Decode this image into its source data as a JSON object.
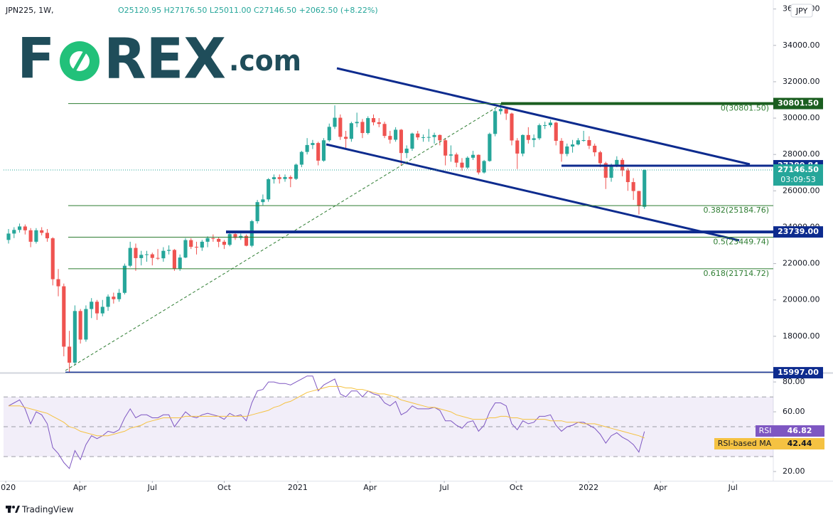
{
  "header": {
    "symbol": "JPN225, 1W,",
    "ohlc": "O25120.95 H27176.50 L25011.00 C27146.50 +2062.50 (+8.22%)",
    "currency": "JPY"
  },
  "logo": {
    "parts": [
      "F",
      "REX",
      ".com"
    ]
  },
  "footer": {
    "brand": "TradingView"
  },
  "chart_data": [
    {
      "type": "candlestick",
      "up_color": "#26a69a",
      "down_color": "#ef5350",
      "xlim": [
        -0.9,
        138.3
      ],
      "xticks": [
        {
          "value": -0.5,
          "label": "2020"
        },
        {
          "value": 12.9,
          "label": "Apr"
        },
        {
          "value": 26,
          "label": "Jul"
        },
        {
          "value": 39,
          "label": "Oct"
        },
        {
          "value": 52.3,
          "label": "2021"
        },
        {
          "value": 65.4,
          "label": "Apr"
        },
        {
          "value": 78.8,
          "label": "Jul"
        },
        {
          "value": 91.8,
          "label": "Oct"
        },
        {
          "value": 104.9,
          "label": "2022"
        },
        {
          "value": 117.9,
          "label": "Apr"
        },
        {
          "value": 131,
          "label": "Jul"
        }
      ],
      "ylim": [
        16000,
        36300
      ],
      "yticks": [
        {
          "value": 36000,
          "label": "36000.00"
        },
        {
          "value": 34000,
          "label": "34000.00"
        },
        {
          "value": 32000,
          "label": "32000.00"
        },
        {
          "value": 30000,
          "label": "30000.00"
        },
        {
          "value": 28000,
          "label": "28000.00"
        },
        {
          "value": 26000,
          "label": "26000.00"
        },
        {
          "value": 24000,
          "label": "24000.00"
        },
        {
          "value": 22000,
          "label": "22000.00"
        },
        {
          "value": 20000,
          "label": "20000.00"
        },
        {
          "value": 18000,
          "label": "18000.00"
        }
      ],
      "grid": false,
      "candles": [
        [
          23300,
          23900,
          23100,
          23650
        ],
        [
          23650,
          24000,
          23400,
          23850
        ],
        [
          23850,
          24200,
          23700,
          24040
        ],
        [
          24040,
          24150,
          23600,
          23830
        ],
        [
          23830,
          23950,
          22900,
          23200
        ],
        [
          23200,
          23950,
          23100,
          23830
        ],
        [
          23830,
          24000,
          23550,
          23690
        ],
        [
          23690,
          23900,
          23200,
          23390
        ],
        [
          23390,
          23450,
          20800,
          21140
        ],
        [
          21140,
          21700,
          20200,
          20750
        ],
        [
          20750,
          20900,
          16900,
          17430
        ],
        [
          17430,
          18300,
          15997,
          16550
        ],
        [
          16550,
          19700,
          16400,
          19390
        ],
        [
          19390,
          19500,
          17600,
          17820
        ],
        [
          17820,
          19700,
          17700,
          19500
        ],
        [
          19500,
          20100,
          19000,
          19900
        ],
        [
          19900,
          20000,
          18900,
          19260
        ],
        [
          19260,
          20000,
          19100,
          19620
        ],
        [
          19620,
          20300,
          19400,
          20180
        ],
        [
          20180,
          20400,
          19800,
          20040
        ],
        [
          20040,
          20600,
          19900,
          20390
        ],
        [
          20390,
          22000,
          20300,
          21880
        ],
        [
          21880,
          23200,
          21800,
          22860
        ],
        [
          22860,
          23100,
          21600,
          22300
        ],
        [
          22300,
          22700,
          21900,
          22480
        ],
        [
          22480,
          22700,
          22100,
          22510
        ],
        [
          22510,
          22600,
          21900,
          22310
        ],
        [
          22310,
          22800,
          22200,
          22290
        ],
        [
          22290,
          22900,
          22100,
          22700
        ],
        [
          22700,
          23000,
          22500,
          22750
        ],
        [
          22750,
          22800,
          21600,
          21710
        ],
        [
          21710,
          22500,
          21600,
          22330
        ],
        [
          22330,
          23400,
          22300,
          23290
        ],
        [
          23290,
          23400,
          22800,
          22920
        ],
        [
          22920,
          23200,
          22500,
          22880
        ],
        [
          22880,
          23300,
          22700,
          23200
        ],
        [
          23200,
          23500,
          22900,
          23400
        ],
        [
          23400,
          23600,
          23200,
          23360
        ],
        [
          23360,
          23450,
          22900,
          23200
        ],
        [
          23200,
          23300,
          22800,
          23030
        ],
        [
          23030,
          23700,
          22950,
          23620
        ],
        [
          23620,
          23750,
          23300,
          23410
        ],
        [
          23410,
          23650,
          23300,
          23520
        ],
        [
          23520,
          23600,
          22950,
          22980
        ],
        [
          22980,
          24400,
          22900,
          24330
        ],
        [
          24330,
          25500,
          24200,
          25380
        ],
        [
          25380,
          25800,
          25200,
          25530
        ],
        [
          25530,
          26700,
          25400,
          26640
        ],
        [
          26640,
          26900,
          26400,
          26750
        ],
        [
          26750,
          26900,
          26400,
          26650
        ],
        [
          26650,
          26900,
          26500,
          26760
        ],
        [
          26760,
          26850,
          26200,
          26660
        ],
        [
          26660,
          27500,
          26600,
          27440
        ],
        [
          27440,
          28200,
          27300,
          28140
        ],
        [
          28140,
          28900,
          28000,
          28520
        ],
        [
          28520,
          28800,
          28300,
          28630
        ],
        [
          28630,
          28700,
          27400,
          27660
        ],
        [
          27660,
          28900,
          27600,
          28780
        ],
        [
          28780,
          29700,
          28700,
          29520
        ],
        [
          29520,
          30700,
          29400,
          30020
        ],
        [
          30020,
          30200,
          28800,
          28970
        ],
        [
          28970,
          29300,
          28300,
          28860
        ],
        [
          28860,
          29800,
          28700,
          29720
        ],
        [
          29720,
          30300,
          29500,
          29790
        ],
        [
          29790,
          29950,
          28900,
          29180
        ],
        [
          29180,
          30100,
          29100,
          30000
        ],
        [
          30000,
          30200,
          29600,
          29770
        ],
        [
          29770,
          30000,
          29500,
          29680
        ],
        [
          29680,
          29800,
          28900,
          29020
        ],
        [
          29020,
          29300,
          28600,
          28810
        ],
        [
          28810,
          29500,
          28700,
          29360
        ],
        [
          29360,
          29400,
          27400,
          28080
        ],
        [
          28080,
          28500,
          27800,
          28320
        ],
        [
          28320,
          29200,
          28200,
          29150
        ],
        [
          29150,
          29300,
          28800,
          28940
        ],
        [
          28940,
          29100,
          28700,
          28950
        ],
        [
          28950,
          29400,
          28700,
          28960
        ],
        [
          28960,
          29200,
          28600,
          29070
        ],
        [
          29070,
          29100,
          28500,
          28780
        ],
        [
          28780,
          28900,
          27400,
          27940
        ],
        [
          27940,
          28500,
          27600,
          28000
        ],
        [
          28000,
          28100,
          27300,
          27550
        ],
        [
          27550,
          27800,
          27100,
          27280
        ],
        [
          27280,
          27900,
          27200,
          27820
        ],
        [
          27820,
          28200,
          27700,
          27980
        ],
        [
          27980,
          28000,
          26900,
          27010
        ],
        [
          27010,
          27700,
          26950,
          27640
        ],
        [
          27640,
          29200,
          27600,
          29130
        ],
        [
          29130,
          30500,
          29000,
          30380
        ],
        [
          30380,
          30801.5,
          30200,
          30500
        ],
        [
          30500,
          30600,
          29900,
          30250
        ],
        [
          30250,
          30300,
          28500,
          28770
        ],
        [
          28770,
          28900,
          27200,
          28050
        ],
        [
          28050,
          29100,
          27900,
          29070
        ],
        [
          29070,
          29500,
          28600,
          28800
        ],
        [
          28800,
          29100,
          28400,
          28890
        ],
        [
          28890,
          29700,
          28800,
          29610
        ],
        [
          29610,
          29800,
          29400,
          29610
        ],
        [
          29610,
          29900,
          29500,
          29750
        ],
        [
          29750,
          29800,
          28500,
          28750
        ],
        [
          28750,
          28900,
          27600,
          28030
        ],
        [
          28030,
          28600,
          27900,
          28440
        ],
        [
          28440,
          28800,
          28100,
          28550
        ],
        [
          28550,
          28900,
          28500,
          28780
        ],
        [
          28780,
          29300,
          28700,
          28790
        ],
        [
          28790,
          29000,
          28300,
          28480
        ],
        [
          28480,
          28600,
          27900,
          28120
        ],
        [
          28120,
          28200,
          27300,
          27520
        ],
        [
          27520,
          27600,
          26100,
          26720
        ],
        [
          26720,
          27500,
          26500,
          27440
        ],
        [
          27440,
          27900,
          27300,
          27700
        ],
        [
          27700,
          27800,
          26800,
          27120
        ],
        [
          27120,
          27250,
          26000,
          26480
        ],
        [
          26480,
          26700,
          25500,
          25990
        ],
        [
          25990,
          26000,
          24700,
          25160
        ],
        [
          25120.95,
          27176.5,
          25011,
          27146.5
        ]
      ],
      "fib_levels": [
        {
          "value": 30801.5,
          "label": "0(30801.50)"
        },
        {
          "value": 25184.76,
          "label": "0.382(25184.76)"
        },
        {
          "value": 23449.74,
          "label": "0.5(23449.74)"
        },
        {
          "value": 21714.72,
          "label": "0.618(21714.72)"
        }
      ],
      "fib_color": "#2e7d32",
      "price_labels": [
        {
          "value": 30801.5,
          "label": "30801.50",
          "color": "#1b5e20"
        },
        {
          "value": 27380.84,
          "label": "27380.84",
          "color": "#0d2b8e"
        },
        {
          "value": 27146.5,
          "label": "27146.50",
          "color": "#26a69a"
        },
        {
          "value": 23739,
          "label": "23739.00",
          "color": "#0d2b8e"
        },
        {
          "value": 15997,
          "label": "15997.00",
          "color": "#0d2b8e"
        }
      ],
      "countdown": "03:09:53"
    },
    {
      "type": "line",
      "ylim": [
        14.3,
        84.8
      ],
      "yticks": [
        {
          "value": 20,
          "label": "20.00"
        },
        {
          "value": 60,
          "label": "60.00"
        },
        {
          "value": 80,
          "label": "80.00"
        }
      ],
      "band": [
        30,
        70
      ],
      "midline": 50,
      "band_color": "#7e57c2",
      "series": [
        {
          "name": "RSI",
          "color": "#7e57c2",
          "last_label": "46.82",
          "values": [
            64,
            66,
            68,
            62,
            52,
            60,
            58,
            52,
            36,
            32,
            26,
            22,
            34,
            28,
            38,
            44,
            42,
            44,
            47,
            46,
            48,
            56,
            62,
            56,
            58,
            58,
            56,
            56,
            58,
            58,
            50,
            55,
            60,
            57,
            56,
            58,
            59,
            58,
            57,
            55,
            59,
            57,
            58,
            54,
            66,
            74,
            75,
            80,
            80,
            79,
            79,
            78,
            80,
            82,
            84,
            84,
            74,
            78,
            80,
            82,
            72,
            70,
            74,
            74,
            70,
            74,
            72,
            71,
            66,
            64,
            67,
            58,
            60,
            64,
            62,
            62,
            62,
            63,
            61,
            54,
            54,
            51,
            49,
            53,
            54,
            47,
            51,
            60,
            66,
            66,
            64,
            52,
            48,
            54,
            52,
            53,
            57,
            57,
            58,
            51,
            47,
            50,
            51,
            53,
            53,
            51,
            49,
            45,
            39,
            44,
            46,
            43,
            41,
            38,
            33,
            46.82
          ]
        },
        {
          "name": "RSI-based MA",
          "color": "#f5c242",
          "last_label": "42.44",
          "values": [
            64,
            64,
            64,
            63,
            62,
            61,
            60,
            59,
            57,
            55,
            53,
            50,
            49,
            47,
            46,
            45,
            44,
            44,
            44,
            45,
            46,
            47,
            49,
            50,
            51,
            53,
            54,
            55,
            56,
            56,
            56,
            56,
            57,
            57,
            57,
            57,
            57,
            57,
            57,
            57,
            57,
            57,
            57,
            57,
            58,
            59,
            60,
            61,
            63,
            64,
            66,
            67,
            69,
            71,
            73,
            74,
            75,
            76,
            77,
            77,
            77,
            76,
            76,
            75,
            75,
            74,
            73,
            72,
            72,
            71,
            70,
            68,
            67,
            66,
            65,
            64,
            63,
            63,
            62,
            61,
            60,
            58,
            57,
            56,
            55,
            55,
            55,
            56,
            56,
            57,
            57,
            56,
            56,
            55,
            55,
            55,
            55,
            55,
            54,
            54,
            54,
            53,
            53,
            53,
            52,
            52,
            52,
            51,
            50,
            49,
            48,
            47,
            46,
            45,
            44,
            42.44
          ]
        }
      ]
    }
  ]
}
